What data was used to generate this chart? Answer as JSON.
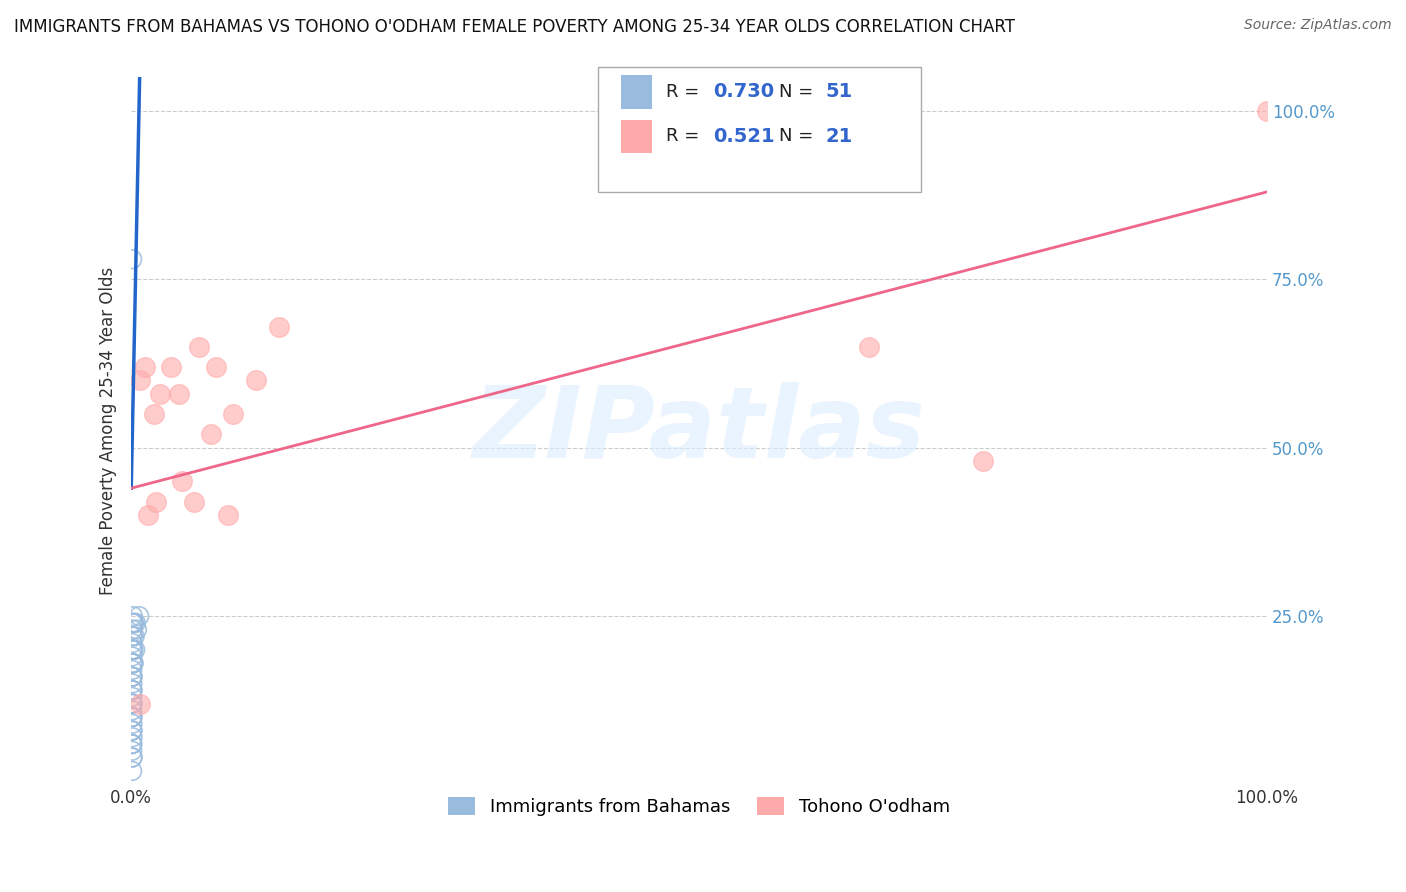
{
  "title": "IMMIGRANTS FROM BAHAMAS VS TOHONO O'ODHAM FEMALE POVERTY AMONG 25-34 YEAR OLDS CORRELATION CHART",
  "source": "Source: ZipAtlas.com",
  "ylabel": "Female Poverty Among 25-34 Year Olds",
  "watermark": "ZIPatlas",
  "blue_R": 0.73,
  "blue_N": 51,
  "pink_R": 0.521,
  "pink_N": 21,
  "blue_color": "#99BBDD",
  "pink_color": "#FFAAAA",
  "blue_line_color": "#2266CC",
  "pink_line_color": "#EE6688",
  "background_color": "#FFFFFF",
  "grid_color": "#CCCCCC",
  "title_color": "#111111",
  "tick_color": "#5599CC",
  "legend_R_color": "#3366CC",
  "legend_N_color": "#3366CC",
  "blue_scatter_x": [
    0.0008,
    0.001,
    0.0009,
    0.0007,
    0.0012,
    0.0008,
    0.0011,
    0.0009,
    0.001,
    0.0008,
    0.0009,
    0.001,
    0.0011,
    0.0008,
    0.0009,
    0.001,
    0.0009,
    0.0008,
    0.001,
    0.0009,
    0.0011,
    0.0008,
    0.001,
    0.0012,
    0.0009,
    0.001,
    0.0008,
    0.0009,
    0.001,
    0.0011,
    0.0015,
    0.0013,
    0.002,
    0.0018,
    0.0022,
    0.0025,
    0.003,
    0.0035,
    0.004,
    0.0015,
    0.0012,
    0.0013,
    0.001,
    0.0009,
    0.0008,
    0.001,
    0.0009,
    0.0011,
    0.007,
    0.005,
    0.0008
  ],
  "blue_scatter_y": [
    0.02,
    0.04,
    0.05,
    0.06,
    0.07,
    0.08,
    0.09,
    0.1,
    0.11,
    0.12,
    0.13,
    0.14,
    0.15,
    0.16,
    0.17,
    0.18,
    0.19,
    0.2,
    0.21,
    0.22,
    0.23,
    0.24,
    0.1,
    0.12,
    0.14,
    0.08,
    0.06,
    0.16,
    0.18,
    0.2,
    0.25,
    0.22,
    0.24,
    0.2,
    0.18,
    0.24,
    0.22,
    0.2,
    0.24,
    0.2,
    0.18,
    0.16,
    0.14,
    0.12,
    0.1,
    0.08,
    0.06,
    0.04,
    0.25,
    0.23,
    0.78
  ],
  "pink_scatter_x": [
    0.008,
    0.012,
    0.02,
    0.025,
    0.035,
    0.042,
    0.06,
    0.075,
    0.09,
    0.11,
    0.13,
    0.015,
    0.022,
    0.045,
    0.055,
    0.07,
    0.085,
    0.65,
    0.75,
    1.0,
    0.008
  ],
  "pink_scatter_y": [
    0.6,
    0.62,
    0.55,
    0.58,
    0.62,
    0.58,
    0.65,
    0.62,
    0.55,
    0.6,
    0.68,
    0.4,
    0.42,
    0.45,
    0.42,
    0.52,
    0.4,
    0.65,
    0.48,
    1.0,
    0.12
  ],
  "blue_line_x": [
    0.0,
    0.008
  ],
  "blue_line_y": [
    0.44,
    1.1
  ],
  "pink_line_x": [
    0.0,
    1.0
  ],
  "pink_line_y": [
    0.44,
    0.88
  ],
  "xlim": [
    0.0,
    1.0
  ],
  "ylim": [
    0.0,
    1.05
  ],
  "ytick_vals": [
    0.0,
    0.25,
    0.5,
    0.75,
    1.0
  ],
  "ytick_labels": [
    "",
    "25.0%",
    "50.0%",
    "75.0%",
    "100.0%"
  ],
  "xtick_vals": [
    0.0,
    0.25,
    0.5,
    0.75,
    1.0
  ],
  "xtick_labels": [
    "0.0%",
    "",
    "",
    "",
    "100.0%"
  ]
}
